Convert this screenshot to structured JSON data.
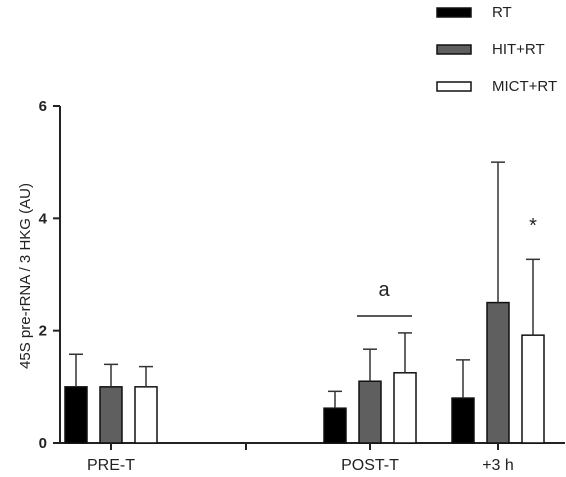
{
  "chart_data": {
    "type": "bar",
    "title": "",
    "xlabel": "",
    "ylabel": "45S pre-rRNA / 3 HKG (AU)",
    "ylim": [
      0,
      6
    ],
    "yticks": [
      "0",
      "2",
      "4",
      "6"
    ],
    "categories": [
      "PRE-T",
      "POST-T",
      "+3 h"
    ],
    "series": [
      {
        "name": "RT",
        "color": "#000000",
        "values": [
          1.0,
          0.62,
          0.8
        ],
        "errors": [
          0.58,
          0.3,
          0.68
        ]
      },
      {
        "name": "HIT+RT",
        "color": "#5f5f5f",
        "values": [
          1.0,
          1.1,
          2.5
        ],
        "errors": [
          0.4,
          0.57,
          2.5
        ]
      },
      {
        "name": "MICT+RT",
        "color": "#ffffff",
        "values": [
          1.0,
          1.25,
          1.92
        ],
        "errors": [
          0.36,
          0.71,
          1.35
        ]
      }
    ],
    "annotations": [
      {
        "text": "a",
        "category": "POST-T"
      },
      {
        "text": "*",
        "category": "+3 h",
        "series": "MICT+RT"
      }
    ],
    "legend": "top-right",
    "grid": false
  }
}
